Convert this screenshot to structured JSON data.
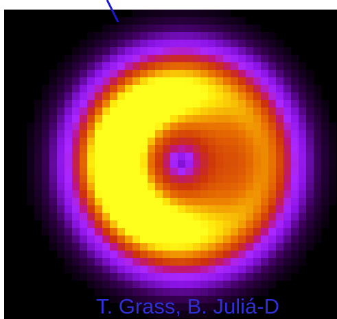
{
  "credit": "T. Grass, B. Juliá-D"
}
